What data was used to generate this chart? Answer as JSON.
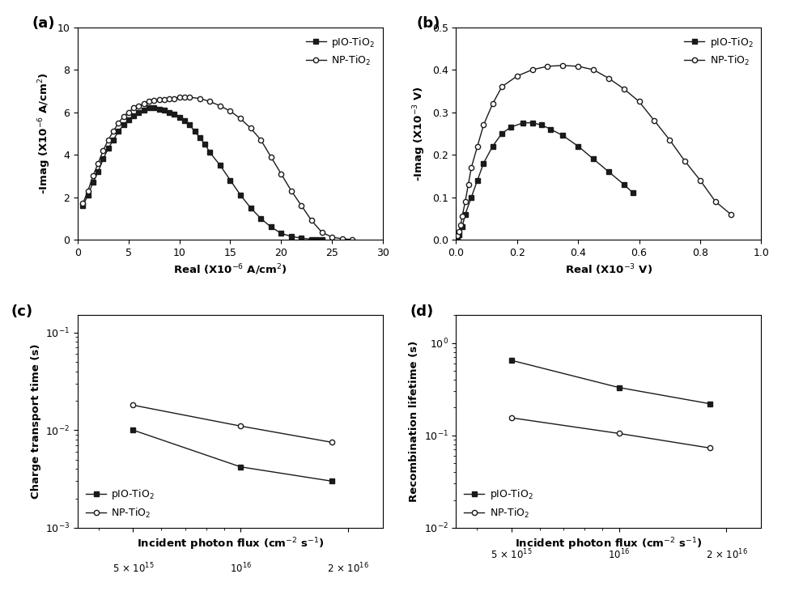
{
  "a_pio_real": [
    0.5,
    1.0,
    1.5,
    2.0,
    2.5,
    3.0,
    3.5,
    4.0,
    4.5,
    5.0,
    5.5,
    6.0,
    6.5,
    7.0,
    7.5,
    8.0,
    8.5,
    9.0,
    9.5,
    10.0,
    10.5,
    11.0,
    11.5,
    12.0,
    12.5,
    13.0,
    14.0,
    15.0,
    16.0,
    17.0,
    18.0,
    19.0,
    20.0,
    21.0,
    22.0,
    23.0,
    23.5,
    24.0
  ],
  "a_pio_imag": [
    1.6,
    2.1,
    2.7,
    3.2,
    3.8,
    4.3,
    4.7,
    5.1,
    5.4,
    5.65,
    5.85,
    6.0,
    6.1,
    6.2,
    6.2,
    6.15,
    6.1,
    6.0,
    5.9,
    5.75,
    5.6,
    5.4,
    5.1,
    4.8,
    4.5,
    4.1,
    3.5,
    2.8,
    2.1,
    1.5,
    1.0,
    0.6,
    0.3,
    0.15,
    0.07,
    0.02,
    0.01,
    0.005
  ],
  "a_np_real": [
    0.5,
    1.0,
    1.5,
    2.0,
    2.5,
    3.0,
    3.5,
    4.0,
    4.5,
    5.0,
    5.5,
    6.0,
    6.5,
    7.0,
    7.5,
    8.0,
    8.5,
    9.0,
    9.5,
    10.0,
    10.5,
    11.0,
    12.0,
    13.0,
    14.0,
    15.0,
    16.0,
    17.0,
    18.0,
    19.0,
    20.0,
    21.0,
    22.0,
    23.0,
    24.0,
    25.0,
    26.0,
    27.0
  ],
  "a_np_imag": [
    1.7,
    2.3,
    3.0,
    3.6,
    4.2,
    4.7,
    5.1,
    5.5,
    5.8,
    6.0,
    6.2,
    6.3,
    6.4,
    6.5,
    6.55,
    6.6,
    6.6,
    6.65,
    6.65,
    6.7,
    6.7,
    6.7,
    6.65,
    6.5,
    6.3,
    6.05,
    5.7,
    5.25,
    4.7,
    3.9,
    3.1,
    2.3,
    1.6,
    0.9,
    0.35,
    0.12,
    0.04,
    0.01
  ],
  "b_pio_real": [
    0.005,
    0.01,
    0.02,
    0.03,
    0.05,
    0.07,
    0.09,
    0.12,
    0.15,
    0.18,
    0.22,
    0.25,
    0.28,
    0.31,
    0.35,
    0.4,
    0.45,
    0.5,
    0.55,
    0.58
  ],
  "b_pio_imag": [
    0.005,
    0.012,
    0.03,
    0.06,
    0.1,
    0.14,
    0.18,
    0.22,
    0.25,
    0.265,
    0.275,
    0.275,
    0.27,
    0.26,
    0.245,
    0.22,
    0.19,
    0.16,
    0.13,
    0.11
  ],
  "b_np_real": [
    0.005,
    0.01,
    0.015,
    0.02,
    0.03,
    0.04,
    0.05,
    0.07,
    0.09,
    0.12,
    0.15,
    0.2,
    0.25,
    0.3,
    0.35,
    0.4,
    0.45,
    0.5,
    0.55,
    0.6,
    0.65,
    0.7,
    0.75,
    0.8,
    0.85,
    0.9
  ],
  "b_np_imag": [
    0.01,
    0.02,
    0.035,
    0.055,
    0.09,
    0.13,
    0.17,
    0.22,
    0.27,
    0.32,
    0.36,
    0.385,
    0.4,
    0.408,
    0.41,
    0.408,
    0.4,
    0.38,
    0.355,
    0.325,
    0.28,
    0.235,
    0.185,
    0.14,
    0.09,
    0.06
  ],
  "c_pio_flux": [
    5000000000000000.0,
    1e+16,
    1.8e+16
  ],
  "c_pio_time": [
    0.01,
    0.0042,
    0.003
  ],
  "c_np_flux": [
    5000000000000000.0,
    1e+16,
    1.8e+16
  ],
  "c_np_time": [
    0.018,
    0.011,
    0.0075
  ],
  "d_pio_flux": [
    5000000000000000.0,
    1e+16,
    1.8e+16
  ],
  "d_pio_lifetime": [
    0.65,
    0.33,
    0.22
  ],
  "d_np_flux": [
    5000000000000000.0,
    1e+16,
    1.8e+16
  ],
  "d_np_lifetime": [
    0.155,
    0.105,
    0.073
  ],
  "xlabel_a": "Real (X10$^{-6}$ A/cm$^2$)",
  "ylabel_a": "-Imag (X10$^{-6}$ A/cm$^2$)",
  "xlabel_b": "Real (X10$^{-3}$ V)",
  "ylabel_b": "-Imag (X10$^{-3}$ V)",
  "xlabel_cd": "Incident photon flux (cm$^{-2}$ s$^{-1}$)",
  "ylabel_c": "Charge transport time (s)",
  "ylabel_d": "Recombination lifetime (s)",
  "legend_pio": "pIO-TiO$_2$",
  "legend_np": "NP-TiO$_2$",
  "line_color": "#1a1a1a"
}
